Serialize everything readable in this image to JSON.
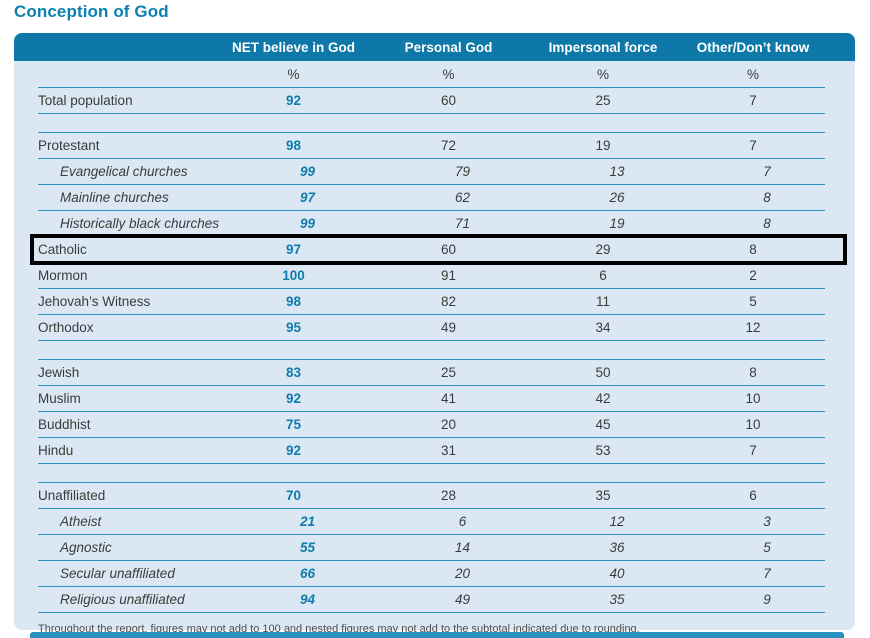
{
  "chart_data": {
    "type": "table",
    "title": "Conception of God",
    "columns": [
      "NET believe in God",
      "Personal God",
      "Impersonal force",
      "Other/Don’t know"
    ],
    "unit_symbols": [
      "%",
      "%",
      "%",
      "%"
    ],
    "groups": [
      [
        {
          "label": "Total population",
          "values": [
            92,
            60,
            25,
            7
          ],
          "sub": false,
          "highlighted": false
        }
      ],
      [
        {
          "label": "Protestant",
          "values": [
            98,
            72,
            19,
            7
          ],
          "sub": false,
          "highlighted": false
        },
        {
          "label": "Evangelical churches",
          "values": [
            99,
            79,
            13,
            7
          ],
          "sub": true,
          "highlighted": false
        },
        {
          "label": "Mainline churches",
          "values": [
            97,
            62,
            26,
            8
          ],
          "sub": true,
          "highlighted": false
        },
        {
          "label": "Historically black churches",
          "values": [
            99,
            71,
            19,
            8
          ],
          "sub": true,
          "highlighted": false
        },
        {
          "label": "Catholic",
          "values": [
            97,
            60,
            29,
            8
          ],
          "sub": false,
          "highlighted": true
        },
        {
          "label": "Mormon",
          "values": [
            100,
            91,
            6,
            2
          ],
          "sub": false,
          "highlighted": false
        },
        {
          "label": "Jehovah’s Witness",
          "values": [
            98,
            82,
            11,
            5
          ],
          "sub": false,
          "highlighted": false
        },
        {
          "label": "Orthodox",
          "values": [
            95,
            49,
            34,
            12
          ],
          "sub": false,
          "highlighted": false
        }
      ],
      [
        {
          "label": "Jewish",
          "values": [
            83,
            25,
            50,
            8
          ],
          "sub": false,
          "highlighted": false
        },
        {
          "label": "Muslim",
          "values": [
            92,
            41,
            42,
            10
          ],
          "sub": false,
          "highlighted": false
        },
        {
          "label": "Buddhist",
          "values": [
            75,
            20,
            45,
            10
          ],
          "sub": false,
          "highlighted": false
        },
        {
          "label": "Hindu",
          "values": [
            92,
            31,
            53,
            7
          ],
          "sub": false,
          "highlighted": false
        }
      ],
      [
        {
          "label": "Unaffiliated",
          "values": [
            70,
            28,
            35,
            6
          ],
          "sub": false,
          "highlighted": false
        },
        {
          "label": "Atheist",
          "values": [
            21,
            6,
            12,
            3
          ],
          "sub": true,
          "highlighted": false
        },
        {
          "label": "Agnostic",
          "values": [
            55,
            14,
            36,
            5
          ],
          "sub": true,
          "highlighted": false
        },
        {
          "label": "Secular unaffiliated",
          "values": [
            66,
            20,
            40,
            7
          ],
          "sub": true,
          "highlighted": false
        },
        {
          "label": "Religious unaffiliated",
          "values": [
            94,
            49,
            35,
            9
          ],
          "sub": true,
          "highlighted": false
        }
      ]
    ],
    "footnote": "Throughout the report, figures may not add to 100 and nested figures may not add to the subtotal indicated due to rounding."
  },
  "colors": {
    "accent_header": "#0e79a9",
    "panel_background": "#dbe8f3",
    "rule_line": "#2e93c0",
    "net_value_blue": "#0f7bad",
    "title_blue": "#0d80b0",
    "highlight_border": "#000000"
  }
}
